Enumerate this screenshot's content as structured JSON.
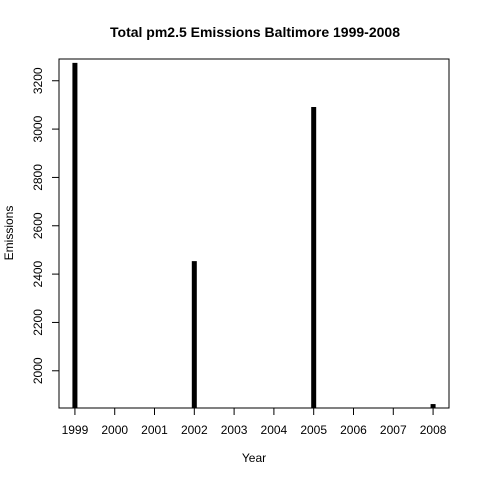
{
  "chart_data": {
    "type": "bar",
    "title": "Total pm2.5 Emissions Baltimore 1999-2008",
    "xlabel": "Year",
    "ylabel": "Emissions",
    "x": [
      1999,
      2002,
      2005,
      2008
    ],
    "values": [
      3274.18,
      2453.92,
      3091.35,
      1862.28
    ],
    "xlim": [
      1998.6,
      2008.4
    ],
    "ylim": [
      1846,
      3290
    ],
    "x_ticks": [
      "1999",
      "2000",
      "2001",
      "2002",
      "2003",
      "2004",
      "2005",
      "2006",
      "2007",
      "2008"
    ],
    "y_ticks": [
      "2000",
      "2200",
      "2400",
      "2600",
      "2800",
      "3000",
      "3200"
    ],
    "grid": false,
    "bar_color": "#000000"
  }
}
